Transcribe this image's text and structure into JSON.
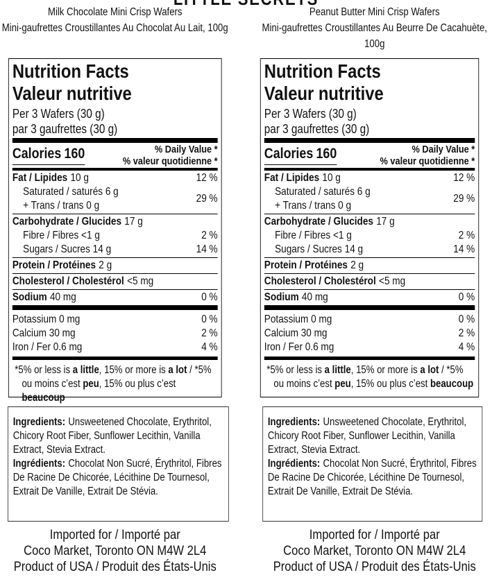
{
  "banner": "LITTLE SECRETS",
  "products": [
    {
      "name": "Milk Chocolate Mini Crisp Wafers",
      "name_fr": "Mini-gaufrettes Croustillantes Au Chocolat Au Lait, 100g",
      "nutrition": {
        "title": "Nutrition Facts",
        "title_fr": "Valeur nutritive",
        "serving": "Per 3 Wafers (30 g)",
        "serving_fr": "par 3 gaufrettes (30 g)",
        "calories_label": "Calories",
        "calories": 160,
        "dv_header": "% Daily Value *",
        "dv_header_fr": "% valeur quotidienne *",
        "groups": [
          [
            {
              "label": "Fat / Lipides",
              "amount": "10 g",
              "dv": "12 %",
              "bold": true
            },
            {
              "label": "Saturated / saturés 6 g",
              "second": "+ Trans / trans 0 g",
              "dv": "29 %",
              "indent": true
            }
          ],
          [
            {
              "label": "Carbohydrate / Glucides",
              "amount": "17 g",
              "bold": true
            },
            {
              "label": "Fibre / Fibres <1 g",
              "dv": "2 %",
              "indent": true
            },
            {
              "label": "Sugars / Sucres 14 g",
              "dv": "14 %",
              "indent": true
            }
          ],
          [
            {
              "label": "Protein / Protéines",
              "amount": "2 g",
              "bold": true
            }
          ],
          [
            {
              "label": "Cholesterol / Cholestérol",
              "amount": "<5 mg",
              "bold": true
            }
          ],
          [
            {
              "label": "Sodium",
              "amount": "40 mg",
              "dv": "0 %",
              "bold": true
            }
          ]
        ],
        "minerals": [
          {
            "label": "Potassium 0 mg",
            "dv": "0 %"
          },
          {
            "label": "Calcium 30 mg",
            "dv": "2 %"
          },
          {
            "label": "Iron / Fer 0.6 mg",
            "dv": "4 %"
          }
        ],
        "footnote": [
          {
            "text": "*5% or less is "
          },
          {
            "text": "a little",
            "bold": true
          },
          {
            "text": ", 15% or more is "
          },
          {
            "text": "a lot",
            "bold": true
          },
          {
            "text": " / *5% ou moins c’est "
          },
          {
            "text": "peu",
            "bold": true
          },
          {
            "text": ", 15% ou plus c’est "
          },
          {
            "text": "beaucoup",
            "bold": true
          }
        ]
      },
      "ingredients": {
        "label": "Ingredients:",
        "text": "Unsweetened Chocolate, Erythritol, Chicory Root Fiber, Sunflower Lecithin, Vanilla Extract, Stevia Extract.",
        "label_fr": "Ingrédients:",
        "text_fr": "Chocolat Non Sucré, Érythritol, Fibres De Racine De Chicorée, Lécithine De Tournesol, Extrait De Vanille, Extrait De Stévia."
      },
      "footer": [
        "Imported for / Importé par",
        "Coco Market, Toronto ON M4W 2L4",
        "Product of USA / Produit des États-Unis"
      ]
    },
    {
      "name": "Peanut Butter Mini Crisp Wafers",
      "name_fr": "Mini-gaufrettes Croustillantes Au Beurre De Cacahuète, 100g",
      "nutrition": {
        "title": "Nutrition Facts",
        "title_fr": "Valeur nutritive",
        "serving": "Per 3 Wafers (30 g)",
        "serving_fr": "par 3 gaufrettes (30 g)",
        "calories_label": "Calories",
        "calories": 160,
        "dv_header": "% Daily Value *",
        "dv_header_fr": "% valeur quotidienne *",
        "groups": [
          [
            {
              "label": "Fat / Lipides",
              "amount": "10 g",
              "dv": "12 %",
              "bold": true
            },
            {
              "label": "Saturated / saturés 6 g",
              "second": "+ Trans / trans 0 g",
              "dv": "29 %",
              "indent": true
            }
          ],
          [
            {
              "label": "Carbohydrate / Glucides",
              "amount": "17 g",
              "bold": true
            },
            {
              "label": "Fibre / Fibres <1 g",
              "dv": "2 %",
              "indent": true
            },
            {
              "label": "Sugars / Sucres 14 g",
              "dv": "14 %",
              "indent": true
            }
          ],
          [
            {
              "label": "Protein / Protéines",
              "amount": "2 g",
              "bold": true
            }
          ],
          [
            {
              "label": "Cholesterol / Cholestérol",
              "amount": "<5 mg",
              "bold": true
            }
          ],
          [
            {
              "label": "Sodium",
              "amount": "40 mg",
              "dv": "0 %",
              "bold": true
            }
          ]
        ],
        "minerals": [
          {
            "label": "Potassium 0 mg",
            "dv": "0 %"
          },
          {
            "label": "Calcium 30 mg",
            "dv": "2 %"
          },
          {
            "label": "Iron / Fer 0.6 mg",
            "dv": "4 %"
          }
        ],
        "footnote": [
          {
            "text": "*5% or less is "
          },
          {
            "text": "a little",
            "bold": true
          },
          {
            "text": ", 15% or more is "
          },
          {
            "text": "a lot",
            "bold": true
          },
          {
            "text": " / *5% ou moins c’est "
          },
          {
            "text": "peu",
            "bold": true
          },
          {
            "text": ", 15% ou plus c’est "
          },
          {
            "text": "beaucoup",
            "bold": true
          }
        ]
      },
      "ingredients": {
        "label": "Ingredients:",
        "text": "Unsweetened Chocolate, Erythritol, Chicory Root Fiber, Sunflower Lecithin, Vanilla Extract, Stevia Extract.",
        "label_fr": "Ingrédients:",
        "text_fr": "Chocolat Non Sucré, Érythritol, Fibres De Racine De Chicorée, Lécithine De Tournesol, Extrait De Vanille, Extrait De Stévia."
      },
      "footer": [
        "Imported for / Importé par",
        "Coco Market, Toronto ON M4W 2L4",
        "Product of USA / Produit des États-Unis"
      ]
    }
  ]
}
